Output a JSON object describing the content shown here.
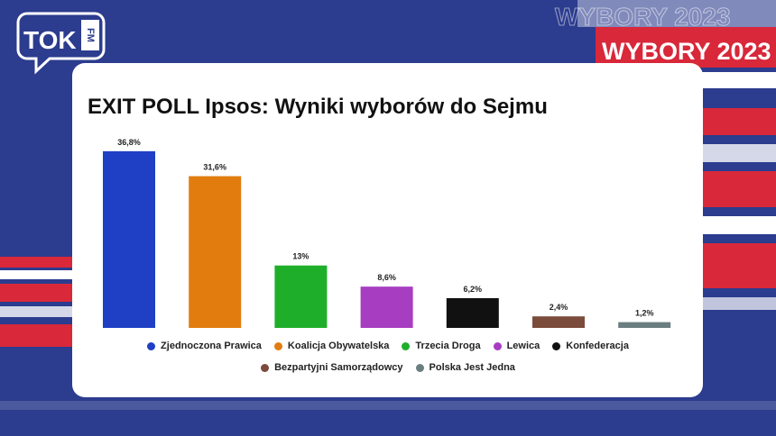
{
  "logo": {
    "main": "TOK",
    "sub": "FM"
  },
  "banner": "WYBORY 2023",
  "chart_data": {
    "type": "bar",
    "title": "EXIT POLL Ipsos: Wyniki wyborów do Sejmu",
    "categories": [
      "Zjednoczona Prawica",
      "Koalicja Obywatelska",
      "Trzecia Droga",
      "Lewica",
      "Konfederacja",
      "Bezpartyjni Samorządowcy",
      "Polska Jest Jedna"
    ],
    "values": [
      36.8,
      31.6,
      13,
      8.6,
      6.2,
      2.4,
      1.2
    ],
    "value_labels": [
      "36,8%",
      "31,6%",
      "13%",
      "8,6%",
      "6,2%",
      "2,4%",
      "1,2%"
    ],
    "colors": [
      "#1f3fc4",
      "#e27c0f",
      "#1fae2a",
      "#a73dc1",
      "#111111",
      "#7b4b3c",
      "#6a7e80"
    ],
    "legend": "bottom"
  }
}
